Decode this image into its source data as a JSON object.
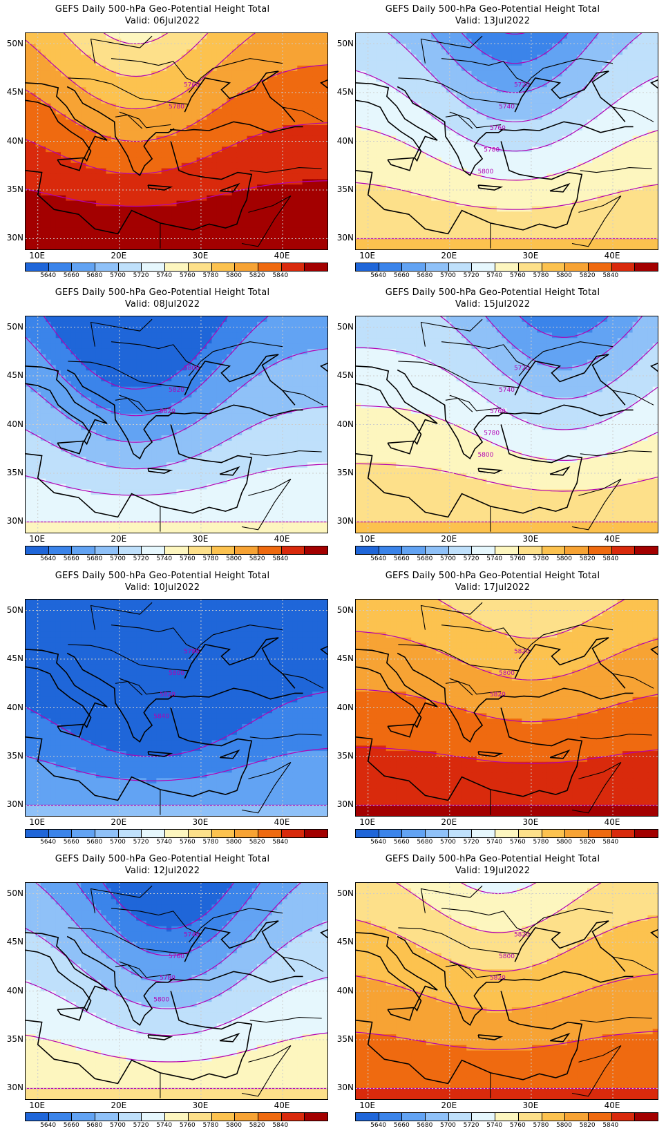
{
  "colorbar": {
    "levels": [
      "5640",
      "5660",
      "5680",
      "5700",
      "5720",
      "5740",
      "5760",
      "5780",
      "5800",
      "5820",
      "5840"
    ],
    "colors": [
      "#1f66d9",
      "#3b84ea",
      "#62a3f3",
      "#8fc1f8",
      "#bfe0fb",
      "#e6f7fd",
      "#fdf6bf",
      "#fde08a",
      "#fcc24f",
      "#f7a334",
      "#ef6a10",
      "#d92a0c",
      "#a30000"
    ]
  },
  "axes": {
    "lat_labels": [
      "50N",
      "45N",
      "40N",
      "35N",
      "30N"
    ],
    "lon_labels": [
      "10E",
      "20E",
      "30E",
      "40E"
    ]
  },
  "panels": [
    {
      "title": "GEFS Daily 500-hPa Geo-Potential Height Total",
      "valid": "Valid: 06Jul2022",
      "contour_labels": [
        "5760",
        "5780"
      ],
      "base_level": 11,
      "trough_lon": 22,
      "trough_depth": 0.8
    },
    {
      "title": "GEFS Daily 500-hPa Geo-Potential Height Total",
      "valid": "Valid: 13Jul2022",
      "contour_labels": [
        "5720",
        "5740",
        "5760",
        "5780",
        "5800"
      ],
      "base_level": 6,
      "trough_lon": 28,
      "trough_depth": 1.0
    },
    {
      "title": "GEFS Daily 500-hPa Geo-Potential Height Total",
      "valid": "Valid: 08Jul2022",
      "contour_labels": [
        "5800",
        "5820",
        "5820"
      ],
      "base_level": 4,
      "trough_lon": 22,
      "trough_depth": 1.2
    },
    {
      "title": "GEFS Daily 500-hPa Geo-Potential Height Total",
      "valid": "Valid: 15Jul2022",
      "contour_labels": [
        "5720",
        "5740",
        "5760",
        "5780",
        "5800"
      ],
      "base_level": 6,
      "trough_lon": 34,
      "trough_depth": 0.9
    },
    {
      "title": "GEFS Daily 500-hPa Geo-Potential Height Total",
      "valid": "Valid: 10Jul2022",
      "contour_labels": [
        "5780",
        "5800",
        "5820",
        "5840"
      ],
      "base_level": 1,
      "trough_lon": 24,
      "trough_depth": 1.4
    },
    {
      "title": "GEFS Daily 500-hPa Geo-Potential Height Total",
      "valid": "Valid: 17Jul2022",
      "contour_labels": [
        "5820",
        "5800",
        "5820"
      ],
      "base_level": 10,
      "trough_lon": 30,
      "trough_depth": 0.4
    },
    {
      "title": "GEFS Daily 500-hPa Geo-Potential Height Total",
      "valid": "Valid: 12Jul2022",
      "contour_labels": [
        "5740",
        "5760",
        "5780",
        "5800"
      ],
      "base_level": 5,
      "trough_lon": 26,
      "trough_depth": 1.2
    },
    {
      "title": "GEFS Daily 500-hPa Geo-Potential Height Total",
      "valid": "Valid: 19Jul2022",
      "contour_labels": [
        "5820",
        "5800",
        "5820"
      ],
      "base_level": 9,
      "trough_lon": 26,
      "trough_depth": 0.5
    }
  ]
}
